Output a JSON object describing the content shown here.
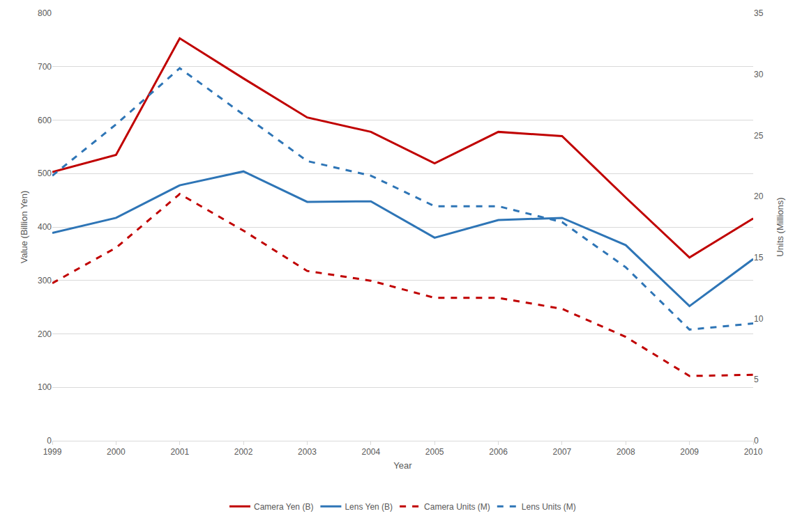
{
  "chart_data": {
    "type": "line",
    "x_label": "Year",
    "y_label": "Value (Billion Yen)",
    "y2_label": "Units (Millions)",
    "categories": [
      "1999",
      "2000",
      "2001",
      "2002",
      "2003",
      "2004",
      "2005",
      "2006",
      "2007",
      "2008",
      "2009",
      "2010"
    ],
    "ylim": [
      0,
      800
    ],
    "yticks": [
      0,
      100,
      200,
      300,
      400,
      500,
      600,
      700,
      800
    ],
    "y2lim": [
      0,
      35
    ],
    "y2ticks": [
      0,
      5,
      10,
      15,
      20,
      25,
      30,
      35
    ],
    "grid": true,
    "legend": "bottom",
    "series": [
      {
        "name": "Camera Yen (B)",
        "color": "#c00000",
        "line_style": "solid",
        "axis": "y",
        "values": [
          503,
          535,
          753,
          678,
          605,
          578,
          519,
          578,
          570,
          455,
          343,
          416
        ]
      },
      {
        "name": "Lens Yen (B)",
        "color": "#2e75b6",
        "line_style": "solid",
        "axis": "y",
        "values": [
          389,
          417,
          478,
          504,
          447,
          448,
          380,
          413,
          417,
          366,
          252,
          340
        ]
      },
      {
        "name": "Camera Units (M)",
        "color": "#c00000",
        "line_style": "dash",
        "axis": "y2",
        "values": [
          12.9,
          15.8,
          20.2,
          17.2,
          13.9,
          13.1,
          11.7,
          11.7,
          10.8,
          8.5,
          5.3,
          5.4
        ]
      },
      {
        "name": "Lens Units (M)",
        "color": "#2e75b6",
        "line_style": "dash",
        "axis": "y2",
        "values": [
          21.7,
          25.9,
          30.5,
          26.7,
          22.9,
          21.7,
          19.2,
          19.2,
          17.9,
          14.2,
          9.1,
          9.6
        ]
      }
    ]
  }
}
